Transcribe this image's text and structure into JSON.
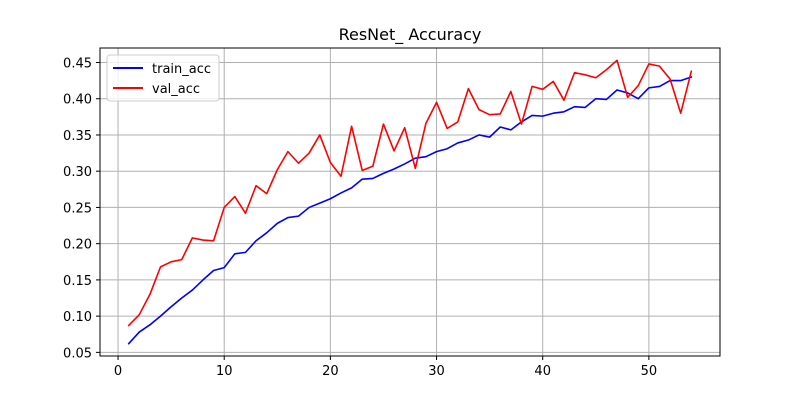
{
  "chart_data": {
    "type": "line",
    "title": "ResNet_ Accuracy",
    "xlabel": "",
    "ylabel": "",
    "xlim": [
      -1.7,
      56.7
    ],
    "ylim": [
      0.045,
      0.47
    ],
    "x_ticks": [
      0,
      10,
      20,
      30,
      40,
      50
    ],
    "y_ticks": [
      0.05,
      0.1,
      0.15,
      0.2,
      0.25,
      0.3,
      0.35,
      0.4,
      0.45
    ],
    "grid": true,
    "legend": "top-left",
    "x": [
      1,
      2,
      3,
      4,
      5,
      6,
      7,
      8,
      9,
      10,
      11,
      12,
      13,
      14,
      15,
      16,
      17,
      18,
      19,
      20,
      21,
      22,
      23,
      24,
      25,
      26,
      27,
      28,
      29,
      30,
      31,
      32,
      33,
      34,
      35,
      36,
      37,
      38,
      39,
      40,
      41,
      42,
      43,
      44,
      45,
      46,
      47,
      48,
      49,
      50,
      51,
      52,
      53,
      54
    ],
    "series": [
      {
        "name": "train_acc",
        "color": "#0000ff",
        "values": [
          0.062,
          0.078,
          0.088,
          0.1,
          0.113,
          0.125,
          0.136,
          0.15,
          0.163,
          0.167,
          0.186,
          0.188,
          0.204,
          0.215,
          0.228,
          0.236,
          0.238,
          0.25,
          0.256,
          0.262,
          0.27,
          0.277,
          0.289,
          0.29,
          0.297,
          0.303,
          0.31,
          0.318,
          0.32,
          0.327,
          0.331,
          0.339,
          0.343,
          0.35,
          0.347,
          0.361,
          0.357,
          0.368,
          0.377,
          0.376,
          0.38,
          0.382,
          0.389,
          0.388,
          0.4,
          0.399,
          0.412,
          0.408,
          0.4,
          0.415,
          0.417,
          0.425,
          0.425,
          0.43
        ]
      },
      {
        "name": "val_acc",
        "color": "#ff0000",
        "values": [
          0.087,
          0.102,
          0.13,
          0.168,
          0.175,
          0.178,
          0.208,
          0.205,
          0.204,
          0.25,
          0.265,
          0.242,
          0.28,
          0.269,
          0.302,
          0.327,
          0.311,
          0.325,
          0.35,
          0.312,
          0.293,
          0.362,
          0.301,
          0.307,
          0.365,
          0.328,
          0.36,
          0.304,
          0.366,
          0.395,
          0.359,
          0.368,
          0.414,
          0.385,
          0.378,
          0.379,
          0.41,
          0.365,
          0.417,
          0.413,
          0.424,
          0.398,
          0.436,
          0.433,
          0.429,
          0.44,
          0.453,
          0.402,
          0.418,
          0.448,
          0.445,
          0.427,
          0.38,
          0.438
        ]
      }
    ]
  }
}
